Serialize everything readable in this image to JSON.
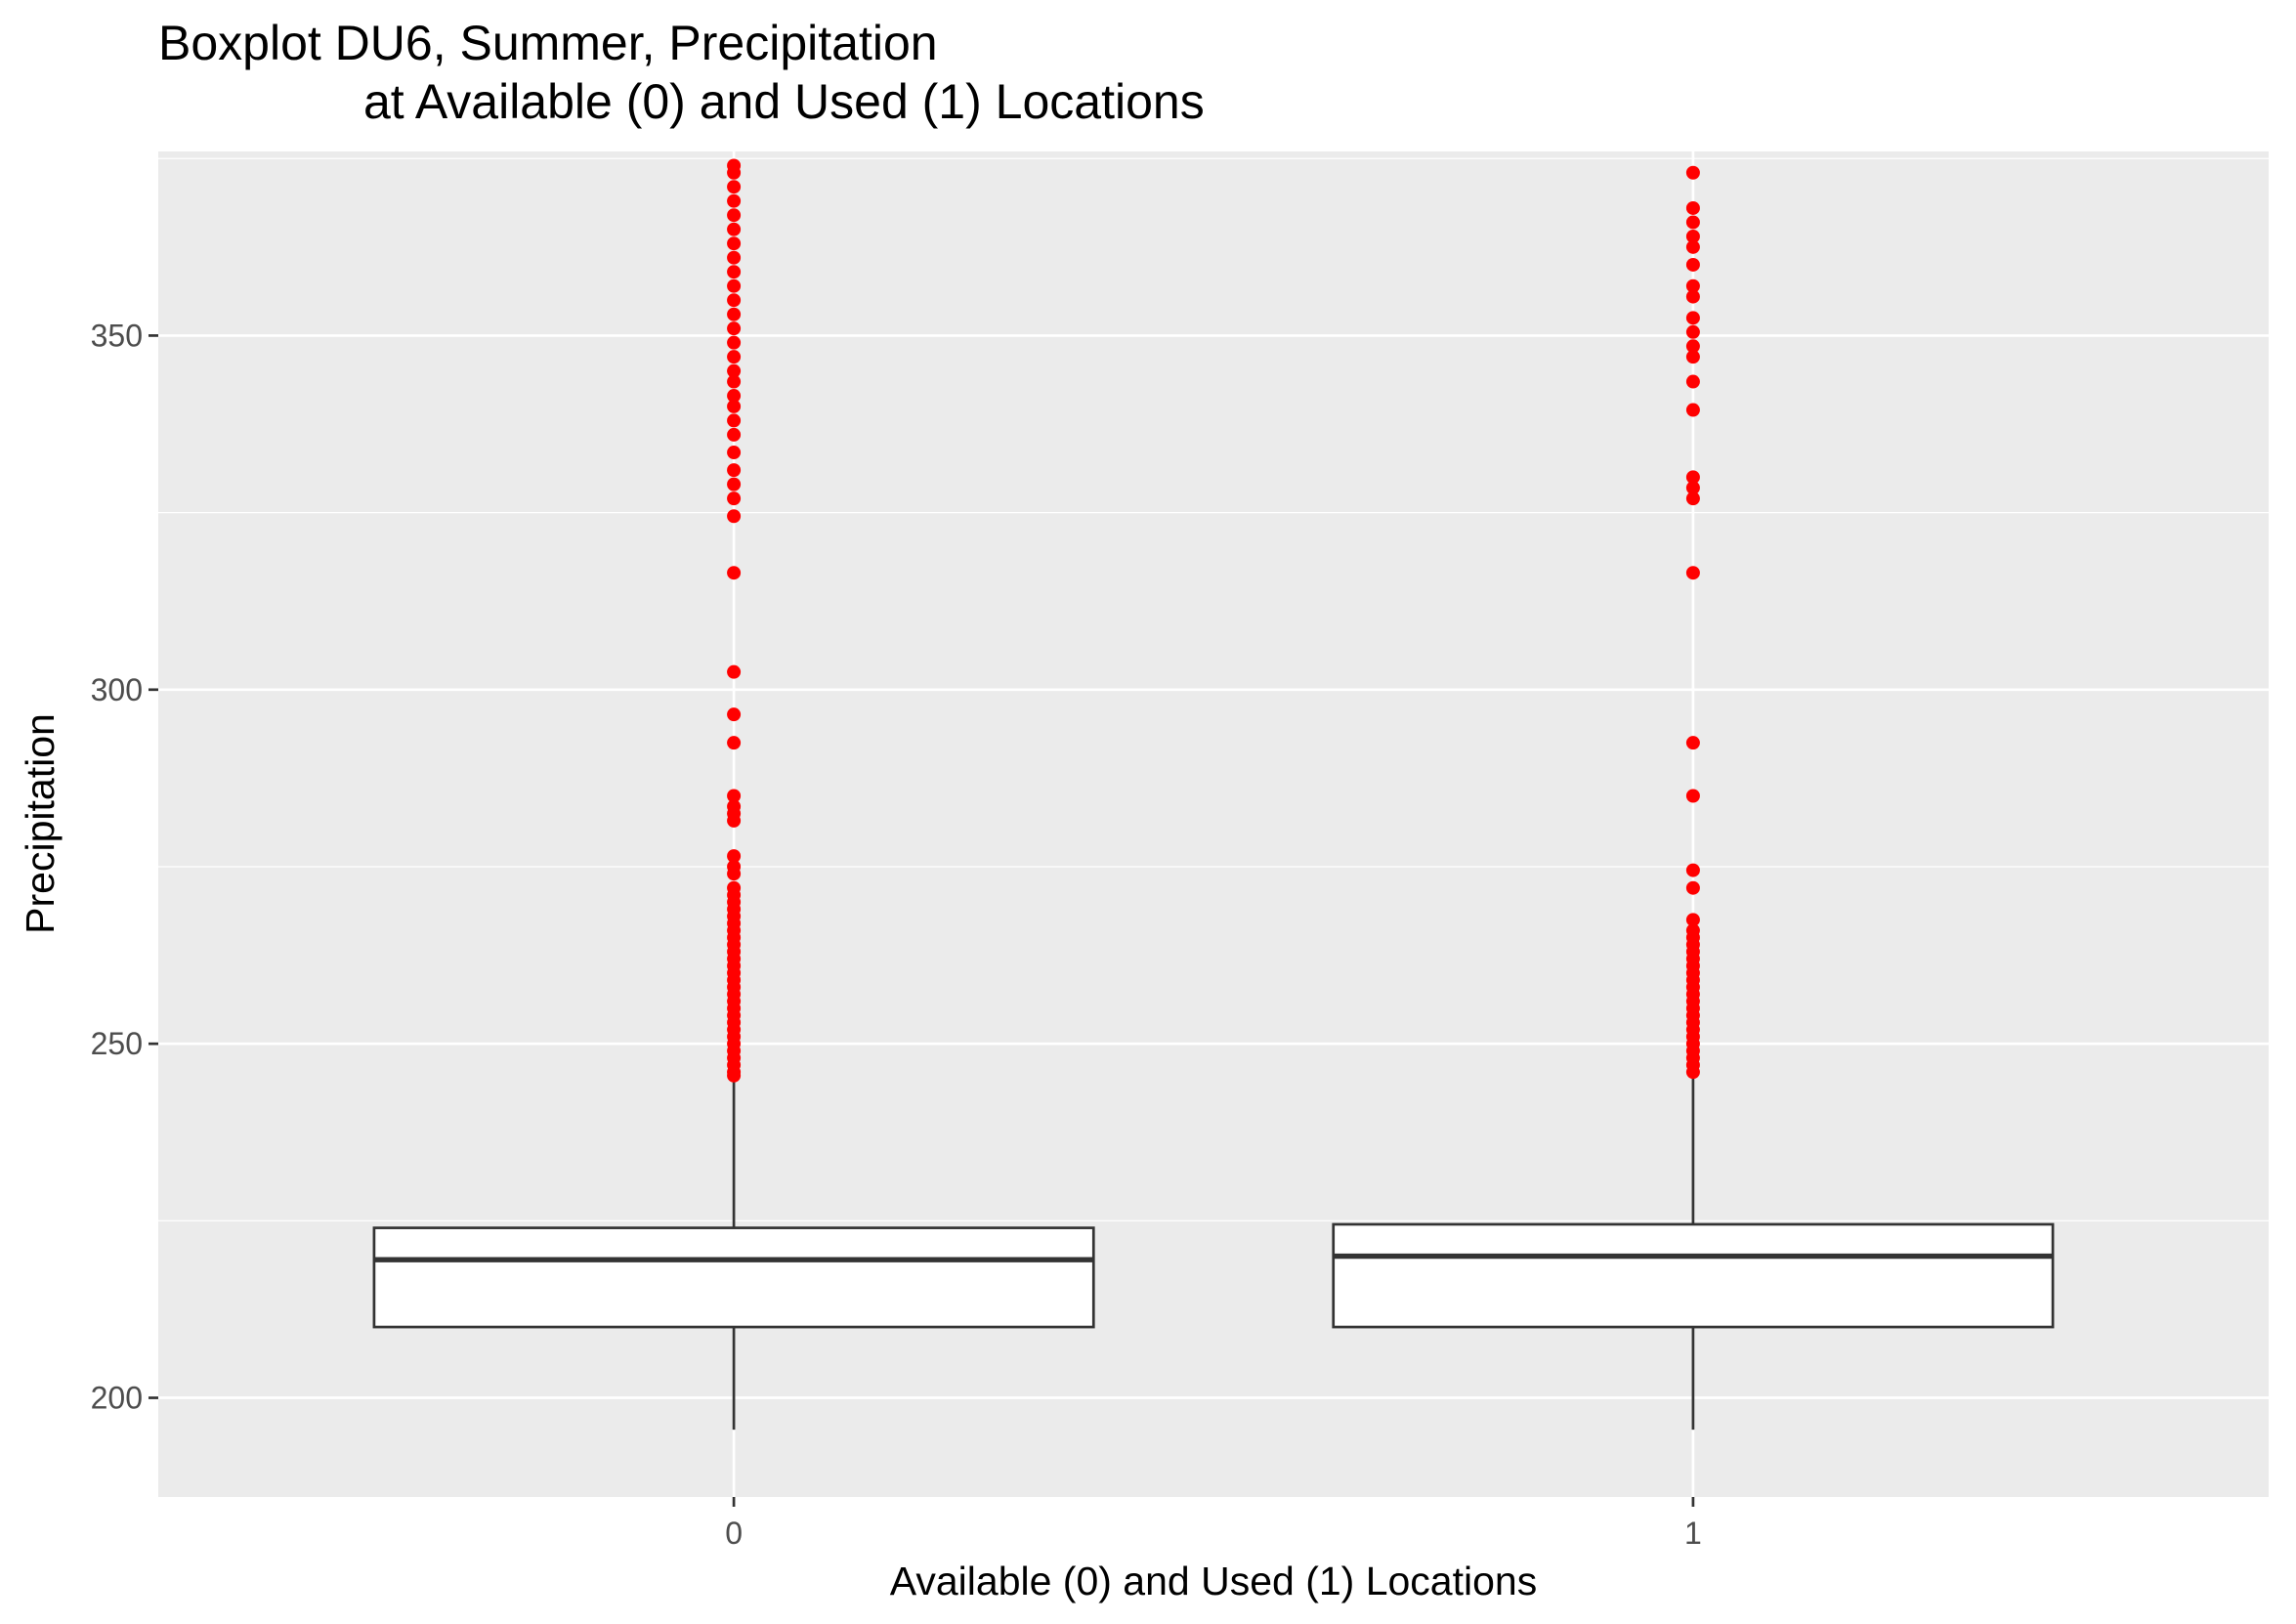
{
  "chart_data": {
    "type": "boxplot",
    "title": "Boxplot DU6, Summer, Precipitation",
    "subtitle": "at Available (0) and Used (1) Locations",
    "xlabel": "Available (0) and Used (1) Locations",
    "ylabel": "Precipitation",
    "ylim": [
      186,
      376
    ],
    "yticks": [
      200,
      250,
      300,
      350
    ],
    "grid": true,
    "categories": [
      "0",
      "1"
    ],
    "colors": {
      "panel": "#ebebeb",
      "grid": "#ffffff",
      "box_fill": "#ffffff",
      "box_line": "#333333",
      "outlier": "#ff0000"
    },
    "boxes": [
      {
        "category": "0",
        "whisker_low": 195.5,
        "q1": 210.0,
        "median": 219.5,
        "q3": 224.0,
        "whisker_high": 245.0
      },
      {
        "category": "1",
        "whisker_low": 195.5,
        "q1": 210.0,
        "median": 220.0,
        "q3": 224.5,
        "whisker_high": 246.0
      }
    ],
    "outliers": [
      {
        "category": "0",
        "values": [
          245.5,
          246,
          247,
          248,
          249,
          250,
          251,
          252,
          253,
          254,
          255,
          256,
          257,
          258,
          259,
          260,
          261,
          262,
          263,
          264,
          265,
          266,
          267,
          268,
          269,
          270,
          271,
          272,
          274,
          275,
          276.5,
          281.5,
          282.5,
          283.5,
          285,
          292.5,
          296.5,
          302.5,
          316.5,
          324.5,
          327,
          329,
          331,
          333.5,
          336,
          338,
          340,
          341.5,
          343.5,
          345,
          347,
          349,
          351,
          353,
          355,
          357,
          359,
          361,
          363,
          365,
          367,
          369,
          371,
          373,
          374
        ]
      },
      {
        "category": "1",
        "values": [
          246,
          247,
          248,
          249,
          250,
          251,
          252,
          253,
          254,
          255,
          256,
          257,
          258,
          259,
          260,
          261,
          262,
          263,
          264,
          265,
          266,
          267.5,
          272,
          274.5,
          285,
          292.5,
          316.5,
          327,
          328.5,
          330,
          339.5,
          343.5,
          347,
          348.5,
          350.5,
          352.5,
          355.5,
          357,
          360,
          362.5,
          364,
          366,
          368,
          373
        ]
      }
    ]
  }
}
